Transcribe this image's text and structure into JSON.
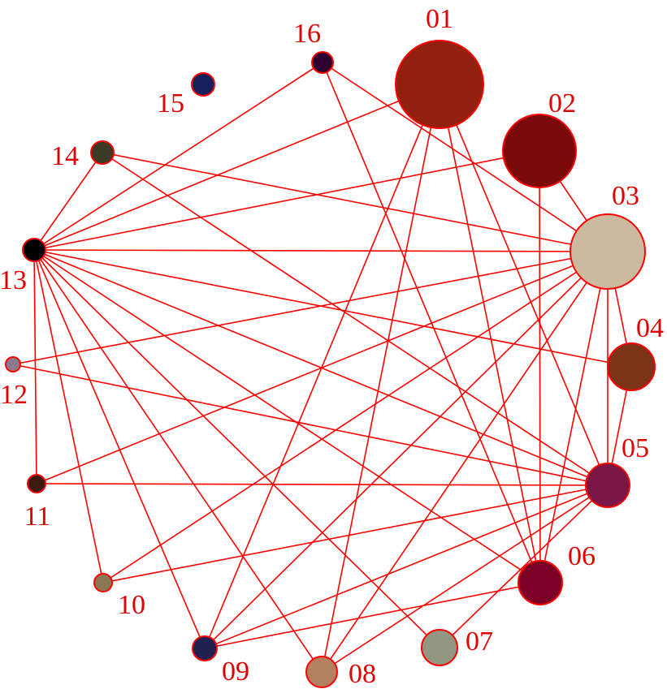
{
  "nodes": [
    {
      "id": "01",
      "color": "#92200f"
    },
    {
      "id": "02",
      "color": "#7d0a0a"
    },
    {
      "id": "03",
      "color": "#cbb9a0"
    },
    {
      "id": "04",
      "color": "#7b3418"
    },
    {
      "id": "05",
      "color": "#7a1545"
    },
    {
      "id": "06",
      "color": "#7c0025"
    },
    {
      "id": "07",
      "color": "#939680"
    },
    {
      "id": "08",
      "color": "#b38060"
    },
    {
      "id": "09",
      "color": "#1f1f50"
    },
    {
      "id": "10",
      "color": "#8a7855"
    },
    {
      "id": "11",
      "color": "#3d1a0f"
    },
    {
      "id": "12",
      "color": "#8c7990"
    },
    {
      "id": "13",
      "color": "#000000"
    },
    {
      "id": "14",
      "color": "#3a3a25"
    },
    {
      "id": "15",
      "color": "#15205a"
    },
    {
      "id": "16",
      "color": "#2e0030"
    }
  ],
  "edges": [
    [
      "01",
      "13"
    ],
    [
      "01",
      "05"
    ],
    [
      "01",
      "06"
    ],
    [
      "01",
      "09"
    ],
    [
      "01",
      "08"
    ],
    [
      "02",
      "13"
    ],
    [
      "02",
      "03"
    ],
    [
      "02",
      "06"
    ],
    [
      "03",
      "13"
    ],
    [
      "03",
      "14"
    ],
    [
      "03",
      "16"
    ],
    [
      "03",
      "04"
    ],
    [
      "03",
      "05"
    ],
    [
      "03",
      "06"
    ],
    [
      "03",
      "08"
    ],
    [
      "03",
      "09"
    ],
    [
      "03",
      "10"
    ],
    [
      "03",
      "11"
    ],
    [
      "03",
      "12"
    ],
    [
      "04",
      "05"
    ],
    [
      "04",
      "13"
    ],
    [
      "05",
      "14"
    ],
    [
      "05",
      "13"
    ],
    [
      "05",
      "12"
    ],
    [
      "05",
      "11"
    ],
    [
      "05",
      "10"
    ],
    [
      "05",
      "09"
    ],
    [
      "05",
      "08"
    ],
    [
      "05",
      "07"
    ],
    [
      "06",
      "16"
    ],
    [
      "06",
      "09"
    ],
    [
      "06",
      "13"
    ],
    [
      "07",
      "13"
    ],
    [
      "08",
      "13"
    ],
    [
      "09",
      "13"
    ],
    [
      "10",
      "13"
    ],
    [
      "11",
      "13"
    ],
    [
      "13",
      "14"
    ],
    [
      "13",
      "16"
    ]
  ],
  "edge_color": "#ff0000",
  "label_color": "#e00000"
}
